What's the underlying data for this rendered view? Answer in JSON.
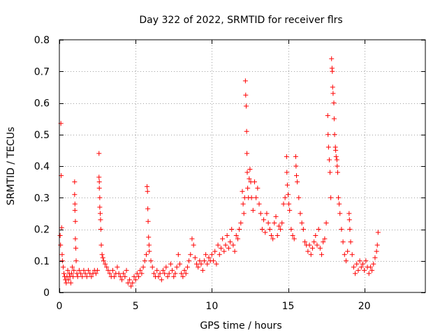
{
  "chart_data": {
    "type": "scatter",
    "title": "Day 322 of 2022, SRMTID for receiver flrs",
    "xlabel": "GPS time / hours",
    "ylabel": "SRMTID / TECUs",
    "xlim": [
      0,
      24
    ],
    "ylim": [
      0,
      0.8
    ],
    "xticks": [
      0,
      5,
      10,
      15,
      20
    ],
    "yticks": [
      0,
      0.1,
      0.2,
      0.3,
      0.4,
      0.5,
      0.6,
      0.7,
      0.8
    ],
    "xtick_labels": [
      "0",
      "5",
      "10",
      "15",
      "20"
    ],
    "ytick_labels": [
      "0",
      "0.1",
      "0.2",
      "0.3",
      "0.4",
      "0.5",
      "0.6",
      "0.7",
      "0.8"
    ],
    "grid": true,
    "marker": "plus",
    "series": [
      {
        "name": "SRMTID",
        "color": "#ff0000",
        "points": [
          [
            0.05,
            0.18
          ],
          [
            0.08,
            0.15
          ],
          [
            0.1,
            0.535
          ],
          [
            0.12,
            0.37
          ],
          [
            0.15,
            0.205
          ],
          [
            0.18,
            0.12
          ],
          [
            0.2,
            0.1
          ],
          [
            0.25,
            0.08
          ],
          [
            0.3,
            0.06
          ],
          [
            0.35,
            0.05
          ],
          [
            0.4,
            0.04
          ],
          [
            0.45,
            0.03
          ],
          [
            0.5,
            0.05
          ],
          [
            0.55,
            0.07
          ],
          [
            0.6,
            0.04
          ],
          [
            0.65,
            0.06
          ],
          [
            0.7,
            0.05
          ],
          [
            0.75,
            0.03
          ],
          [
            0.8,
            0.06
          ],
          [
            0.85,
            0.08
          ],
          [
            0.9,
            0.05
          ],
          [
            0.95,
            0.07
          ],
          [
            1.0,
            0.35
          ],
          [
            1.0,
            0.31
          ],
          [
            1.02,
            0.28
          ],
          [
            1.02,
            0.26
          ],
          [
            1.05,
            0.225
          ],
          [
            1.05,
            0.17
          ],
          [
            1.08,
            0.14
          ],
          [
            1.1,
            0.1
          ],
          [
            1.15,
            0.06
          ],
          [
            1.2,
            0.05
          ],
          [
            1.3,
            0.07
          ],
          [
            1.4,
            0.06
          ],
          [
            1.5,
            0.05
          ],
          [
            1.6,
            0.07
          ],
          [
            1.7,
            0.06
          ],
          [
            1.8,
            0.05
          ],
          [
            1.9,
            0.07
          ],
          [
            2.0,
            0.06
          ],
          [
            2.1,
            0.05
          ],
          [
            2.2,
            0.06
          ],
          [
            2.3,
            0.07
          ],
          [
            2.4,
            0.06
          ],
          [
            2.5,
            0.07
          ],
          [
            2.6,
            0.44
          ],
          [
            2.6,
            0.365
          ],
          [
            2.62,
            0.35
          ],
          [
            2.62,
            0.33
          ],
          [
            2.65,
            0.3
          ],
          [
            2.65,
            0.27
          ],
          [
            2.68,
            0.25
          ],
          [
            2.7,
            0.23
          ],
          [
            2.72,
            0.2
          ],
          [
            2.75,
            0.15
          ],
          [
            2.8,
            0.12
          ],
          [
            2.85,
            0.11
          ],
          [
            2.9,
            0.1
          ],
          [
            3.0,
            0.09
          ],
          [
            3.1,
            0.08
          ],
          [
            3.2,
            0.07
          ],
          [
            3.3,
            0.06
          ],
          [
            3.4,
            0.05
          ],
          [
            3.5,
            0.07
          ],
          [
            3.6,
            0.05
          ],
          [
            3.7,
            0.06
          ],
          [
            3.8,
            0.08
          ],
          [
            3.9,
            0.06
          ],
          [
            4.0,
            0.05
          ],
          [
            4.1,
            0.04
          ],
          [
            4.2,
            0.06
          ],
          [
            4.3,
            0.05
          ],
          [
            4.4,
            0.07
          ],
          [
            4.5,
            0.03
          ],
          [
            4.6,
            0.04
          ],
          [
            4.7,
            0.02
          ],
          [
            4.8,
            0.03
          ],
          [
            4.9,
            0.05
          ],
          [
            5.0,
            0.04
          ],
          [
            5.1,
            0.06
          ],
          [
            5.2,
            0.05
          ],
          [
            5.3,
            0.07
          ],
          [
            5.4,
            0.06
          ],
          [
            5.5,
            0.08
          ],
          [
            5.6,
            0.1
          ],
          [
            5.7,
            0.12
          ],
          [
            5.75,
            0.335
          ],
          [
            5.78,
            0.32
          ],
          [
            5.8,
            0.265
          ],
          [
            5.82,
            0.225
          ],
          [
            5.85,
            0.175
          ],
          [
            5.88,
            0.15
          ],
          [
            5.9,
            0.13
          ],
          [
            6.0,
            0.1
          ],
          [
            6.1,
            0.08
          ],
          [
            6.2,
            0.06
          ],
          [
            6.3,
            0.05
          ],
          [
            6.4,
            0.07
          ],
          [
            6.5,
            0.05
          ],
          [
            6.6,
            0.06
          ],
          [
            6.7,
            0.04
          ],
          [
            6.8,
            0.07
          ],
          [
            6.9,
            0.06
          ],
          [
            7.0,
            0.08
          ],
          [
            7.1,
            0.05
          ],
          [
            7.2,
            0.06
          ],
          [
            7.3,
            0.09
          ],
          [
            7.4,
            0.07
          ],
          [
            7.5,
            0.05
          ],
          [
            7.6,
            0.06
          ],
          [
            7.7,
            0.08
          ],
          [
            7.8,
            0.12
          ],
          [
            7.9,
            0.09
          ],
          [
            8.0,
            0.06
          ],
          [
            8.1,
            0.05
          ],
          [
            8.2,
            0.07
          ],
          [
            8.3,
            0.06
          ],
          [
            8.4,
            0.08
          ],
          [
            8.5,
            0.1
          ],
          [
            8.6,
            0.12
          ],
          [
            8.7,
            0.17
          ],
          [
            8.8,
            0.15
          ],
          [
            8.9,
            0.11
          ],
          [
            9.0,
            0.09
          ],
          [
            9.1,
            0.08
          ],
          [
            9.2,
            0.1
          ],
          [
            9.3,
            0.09
          ],
          [
            9.4,
            0.07
          ],
          [
            9.5,
            0.1
          ],
          [
            9.6,
            0.12
          ],
          [
            9.7,
            0.09
          ],
          [
            9.8,
            0.11
          ],
          [
            9.9,
            0.1
          ],
          [
            10.0,
            0.12
          ],
          [
            10.1,
            0.1
          ],
          [
            10.2,
            0.13
          ],
          [
            10.3,
            0.09
          ],
          [
            10.4,
            0.15
          ],
          [
            10.5,
            0.12
          ],
          [
            10.6,
            0.14
          ],
          [
            10.7,
            0.17
          ],
          [
            10.8,
            0.13
          ],
          [
            10.9,
            0.15
          ],
          [
            11.0,
            0.18
          ],
          [
            11.1,
            0.14
          ],
          [
            11.2,
            0.16
          ],
          [
            11.3,
            0.2
          ],
          [
            11.4,
            0.15
          ],
          [
            11.5,
            0.13
          ],
          [
            11.6,
            0.18
          ],
          [
            11.7,
            0.17
          ],
          [
            11.8,
            0.2
          ],
          [
            11.9,
            0.22
          ],
          [
            12.0,
            0.32
          ],
          [
            12.05,
            0.28
          ],
          [
            12.1,
            0.25
          ],
          [
            12.15,
            0.3
          ],
          [
            12.2,
            0.67
          ],
          [
            12.22,
            0.625
          ],
          [
            12.25,
            0.59
          ],
          [
            12.28,
            0.51
          ],
          [
            12.3,
            0.44
          ],
          [
            12.32,
            0.38
          ],
          [
            12.35,
            0.33
          ],
          [
            12.4,
            0.3
          ],
          [
            12.45,
            0.36
          ],
          [
            12.5,
            0.39
          ],
          [
            12.55,
            0.35
          ],
          [
            12.6,
            0.3
          ],
          [
            12.7,
            0.26
          ],
          [
            12.8,
            0.35
          ],
          [
            12.9,
            0.3
          ],
          [
            13.0,
            0.33
          ],
          [
            13.1,
            0.28
          ],
          [
            13.2,
            0.25
          ],
          [
            13.3,
            0.2
          ],
          [
            13.4,
            0.23
          ],
          [
            13.5,
            0.19
          ],
          [
            13.6,
            0.25
          ],
          [
            13.7,
            0.22
          ],
          [
            13.8,
            0.2
          ],
          [
            13.9,
            0.18
          ],
          [
            14.0,
            0.17
          ],
          [
            14.1,
            0.22
          ],
          [
            14.2,
            0.24
          ],
          [
            14.3,
            0.18
          ],
          [
            14.4,
            0.21
          ],
          [
            14.5,
            0.2
          ],
          [
            14.6,
            0.22
          ],
          [
            14.7,
            0.28
          ],
          [
            14.8,
            0.3
          ],
          [
            14.9,
            0.43
          ],
          [
            14.92,
            0.38
          ],
          [
            14.95,
            0.34
          ],
          [
            15.0,
            0.31
          ],
          [
            15.05,
            0.28
          ],
          [
            15.1,
            0.26
          ],
          [
            15.2,
            0.2
          ],
          [
            15.3,
            0.18
          ],
          [
            15.4,
            0.17
          ],
          [
            15.5,
            0.43
          ],
          [
            15.52,
            0.4
          ],
          [
            15.55,
            0.37
          ],
          [
            15.6,
            0.35
          ],
          [
            15.7,
            0.3
          ],
          [
            15.8,
            0.25
          ],
          [
            15.9,
            0.22
          ],
          [
            16.0,
            0.2
          ],
          [
            16.1,
            0.16
          ],
          [
            16.2,
            0.15
          ],
          [
            16.3,
            0.13
          ],
          [
            16.4,
            0.15
          ],
          [
            16.5,
            0.12
          ],
          [
            16.6,
            0.14
          ],
          [
            16.7,
            0.16
          ],
          [
            16.8,
            0.18
          ],
          [
            16.9,
            0.15
          ],
          [
            17.0,
            0.2
          ],
          [
            17.1,
            0.14
          ],
          [
            17.2,
            0.12
          ],
          [
            17.3,
            0.16
          ],
          [
            17.4,
            0.17
          ],
          [
            17.5,
            0.22
          ],
          [
            17.6,
            0.56
          ],
          [
            17.62,
            0.5
          ],
          [
            17.65,
            0.46
          ],
          [
            17.7,
            0.42
          ],
          [
            17.75,
            0.38
          ],
          [
            17.8,
            0.3
          ],
          [
            17.85,
            0.74
          ],
          [
            17.88,
            0.71
          ],
          [
            17.9,
            0.7
          ],
          [
            17.92,
            0.65
          ],
          [
            17.95,
            0.63
          ],
          [
            18.0,
            0.6
          ],
          [
            18.02,
            0.55
          ],
          [
            18.05,
            0.5
          ],
          [
            18.1,
            0.46
          ],
          [
            18.12,
            0.45
          ],
          [
            18.15,
            0.43
          ],
          [
            18.2,
            0.42
          ],
          [
            18.22,
            0.4
          ],
          [
            18.25,
            0.38
          ],
          [
            18.3,
            0.3
          ],
          [
            18.35,
            0.28
          ],
          [
            18.4,
            0.25
          ],
          [
            18.5,
            0.2
          ],
          [
            18.6,
            0.16
          ],
          [
            18.7,
            0.12
          ],
          [
            18.8,
            0.1
          ],
          [
            18.9,
            0.13
          ],
          [
            19.0,
            0.25
          ],
          [
            19.02,
            0.23
          ],
          [
            19.05,
            0.2
          ],
          [
            19.1,
            0.16
          ],
          [
            19.2,
            0.12
          ],
          [
            19.3,
            0.08
          ],
          [
            19.4,
            0.06
          ],
          [
            19.5,
            0.09
          ],
          [
            19.6,
            0.07
          ],
          [
            19.7,
            0.1
          ],
          [
            19.8,
            0.08
          ],
          [
            19.9,
            0.09
          ],
          [
            20.0,
            0.07
          ],
          [
            20.1,
            0.1
          ],
          [
            20.2,
            0.08
          ],
          [
            20.3,
            0.06
          ],
          [
            20.4,
            0.08
          ],
          [
            20.5,
            0.07
          ],
          [
            20.6,
            0.09
          ],
          [
            20.7,
            0.11
          ],
          [
            20.8,
            0.13
          ],
          [
            20.85,
            0.15
          ],
          [
            20.9,
            0.19
          ]
        ]
      }
    ]
  }
}
